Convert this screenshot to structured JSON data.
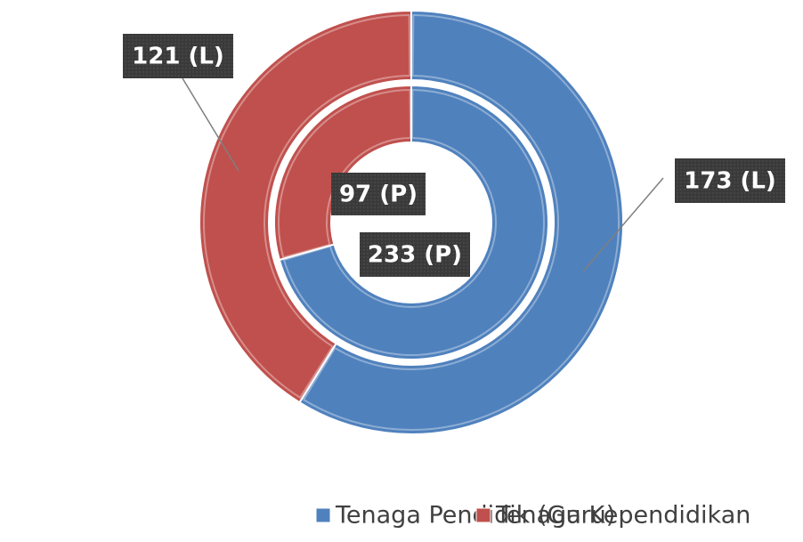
{
  "chart_data": {
    "type": "doughnut",
    "categories": [
      "Tenaga Pendidik (Guru)",
      "Tenaga Kependidikan"
    ],
    "colors": [
      "#4f81bd",
      "#c0504d"
    ],
    "series": [
      {
        "values": [
          173,
          121
        ],
        "value_labels": [
          "173 (L)",
          "121 (L)"
        ]
      },
      {
        "values": [
          233,
          97
        ],
        "value_labels": [
          "233 (P)",
          "97 (P)"
        ]
      }
    ],
    "legend": "bottom"
  }
}
